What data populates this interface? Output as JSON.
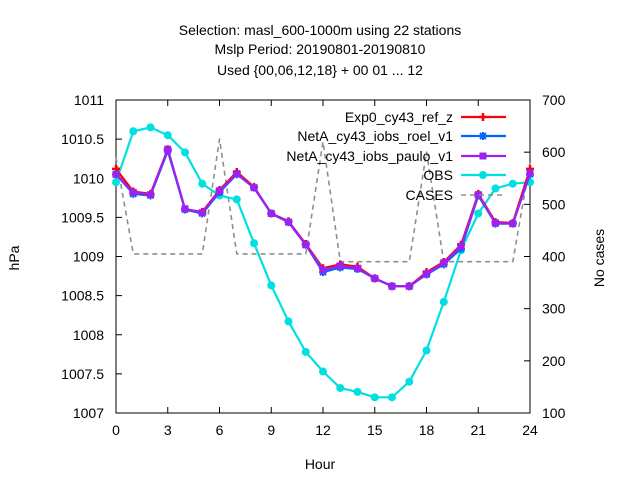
{
  "chart_data": {
    "type": "line",
    "title_lines": [
      "Selection: masl_600-1000m using    22 stations",
      "Mslp  Period: 20190801-20190810",
      "Used {00,06,12,18} + 00 01 ... 12"
    ],
    "xlabel": "Hour",
    "ylabel": "hPa",
    "y2label": "No cases",
    "xlim": [
      0,
      24
    ],
    "ylim": [
      1007,
      1011
    ],
    "y2lim": [
      100,
      700
    ],
    "xticks": [
      "0",
      "3",
      "6",
      "9",
      "12",
      "15",
      "18",
      "21",
      "24"
    ],
    "yticks": [
      "1007",
      "1007.5",
      "1008",
      "1008.5",
      "1009",
      "1009.5",
      "1010",
      "1010.5",
      "1011"
    ],
    "y2ticks": [
      "100",
      "200",
      "300",
      "400",
      "500",
      "600",
      "700"
    ],
    "legend_position": "top-right",
    "x": [
      0,
      1,
      2,
      3,
      4,
      5,
      6,
      7,
      8,
      9,
      10,
      11,
      12,
      13,
      14,
      15,
      16,
      17,
      18,
      19,
      20,
      21,
      22,
      23,
      24
    ],
    "series": [
      {
        "name": "Exp0_cy43_ref_z",
        "color": "#ff0000",
        "marker": "plus",
        "axis": "y",
        "values": [
          1010.12,
          1009.83,
          1009.8,
          1010.37,
          1009.6,
          1009.57,
          1009.85,
          1010.08,
          1009.89,
          1009.55,
          1009.45,
          1009.16,
          1008.85,
          1008.9,
          1008.87,
          1008.72,
          1008.62,
          1008.62,
          1008.8,
          1008.93,
          1009.15,
          1009.8,
          1009.44,
          1009.43,
          1010.12
        ]
      },
      {
        "name": "NetA_cy43_iobs_roel_v1",
        "color": "#0066ff",
        "marker": "star",
        "axis": "y",
        "values": [
          1010.05,
          1009.8,
          1009.78,
          1010.35,
          1009.6,
          1009.55,
          1009.82,
          1010.05,
          1009.88,
          1009.55,
          1009.44,
          1009.15,
          1008.8,
          1008.86,
          1008.84,
          1008.72,
          1008.62,
          1008.62,
          1008.77,
          1008.9,
          1009.1,
          1009.78,
          1009.42,
          1009.42,
          1010.05
        ]
      },
      {
        "name": "NetA_cy43_iobs_paulo_v1",
        "color": "#a020f0",
        "marker": "square",
        "axis": "y",
        "values": [
          1010.05,
          1009.82,
          1009.79,
          1010.37,
          1009.61,
          1009.56,
          1009.84,
          1010.06,
          1009.88,
          1009.55,
          1009.44,
          1009.15,
          1008.83,
          1008.88,
          1008.85,
          1008.72,
          1008.62,
          1008.62,
          1008.78,
          1008.92,
          1009.13,
          1009.79,
          1009.43,
          1009.42,
          1010.07
        ]
      },
      {
        "name": "OBS",
        "color": "#00e0e0",
        "marker": "circle",
        "axis": "y",
        "values": [
          1009.95,
          1010.6,
          1010.65,
          1010.55,
          1010.33,
          1009.93,
          1009.78,
          1009.73,
          1009.17,
          1008.63,
          1008.17,
          1007.78,
          1007.53,
          1007.32,
          1007.27,
          1007.2,
          1007.2,
          1007.4,
          1007.8,
          1008.42,
          1009.08,
          1009.55,
          1009.87,
          1009.93,
          1009.95
        ]
      },
      {
        "name": "CASES",
        "color": "#8f8f8f",
        "marker": "none",
        "dash": true,
        "axis": "y2",
        "values": [
          590,
          405,
          405,
          405,
          405,
          405,
          625,
          405,
          405,
          405,
          405,
          405,
          620,
          390,
          390,
          390,
          390,
          390,
          600,
          390,
          390,
          390,
          390,
          390,
          580
        ]
      }
    ]
  }
}
